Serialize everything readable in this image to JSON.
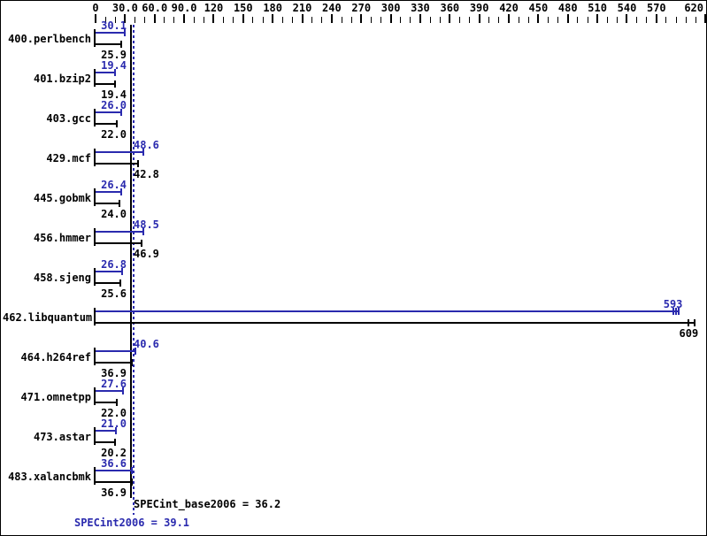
{
  "chart_data": {
    "type": "bar",
    "orientation": "horizontal",
    "series": [
      {
        "name": "peak",
        "color": "#2a2aae"
      },
      {
        "name": "base",
        "color": "#000000"
      }
    ],
    "benchmarks": [
      {
        "name": "400.perlbench",
        "peak": 30.1,
        "peak_label": "30.1",
        "base": 25.9,
        "base_label": "25.9"
      },
      {
        "name": "401.bzip2",
        "peak": 19.4,
        "peak_label": "19.4",
        "base": 19.4,
        "base_label": "19.4"
      },
      {
        "name": "403.gcc",
        "peak": 26.0,
        "peak_label": "26.0",
        "base": 22.0,
        "base_label": "22.0"
      },
      {
        "name": "429.mcf",
        "peak": 48.6,
        "peak_label": "48.6",
        "base": 42.8,
        "base_label": "42.8"
      },
      {
        "name": "445.gobmk",
        "peak": 26.4,
        "peak_label": "26.4",
        "base": 24.0,
        "base_label": "24.0"
      },
      {
        "name": "456.hmmer",
        "peak": 48.5,
        "peak_label": "48.5",
        "base": 46.9,
        "base_label": "46.9"
      },
      {
        "name": "458.sjeng",
        "peak": 26.8,
        "peak_label": "26.8",
        "base": 25.6,
        "base_label": "25.6"
      },
      {
        "name": "462.libquantum",
        "peak": 593,
        "peak_label": "593",
        "base": 609,
        "base_label": "609",
        "peak_marks": 3,
        "base_marks": 2
      },
      {
        "name": "464.h264ref",
        "peak": 40.6,
        "peak_label": "40.6",
        "base": 36.9,
        "base_label": "36.9"
      },
      {
        "name": "471.omnetpp",
        "peak": 27.6,
        "peak_label": "27.6",
        "base": 22.0,
        "base_label": "22.0"
      },
      {
        "name": "473.astar",
        "peak": 21.0,
        "peak_label": "21.0",
        "base": 20.2,
        "base_label": "20.2"
      },
      {
        "name": "483.xalancbmk",
        "peak": 36.6,
        "peak_label": "36.6",
        "base": 36.9,
        "base_label": "36.9"
      }
    ],
    "axis": {
      "min": 0,
      "max": 620,
      "major_step": 30,
      "minor_step": 10,
      "tick_labels": [
        {
          "value": 0,
          "label": "0"
        },
        {
          "value": 30,
          "label": "30.0"
        },
        {
          "value": 60,
          "label": "60.0"
        },
        {
          "value": 90,
          "label": "90.0"
        },
        {
          "value": 120,
          "label": "120"
        },
        {
          "value": 150,
          "label": "150"
        },
        {
          "value": 180,
          "label": "180"
        },
        {
          "value": 210,
          "label": "210"
        },
        {
          "value": 240,
          "label": "240"
        },
        {
          "value": 270,
          "label": "270"
        },
        {
          "value": 300,
          "label": "300"
        },
        {
          "value": 330,
          "label": "330"
        },
        {
          "value": 360,
          "label": "360"
        },
        {
          "value": 390,
          "label": "390"
        },
        {
          "value": 420,
          "label": "420"
        },
        {
          "value": 450,
          "label": "450"
        },
        {
          "value": 480,
          "label": "480"
        },
        {
          "value": 510,
          "label": "510"
        },
        {
          "value": 540,
          "label": "540"
        },
        {
          "value": 570,
          "label": "570"
        },
        {
          "value": 620,
          "label": "620"
        }
      ]
    },
    "summary": {
      "base_text": "SPECint_base2006 = 36.2",
      "base_value": 36.2,
      "peak_text": "SPECint2006 = 39.1",
      "peak_value": 39.1
    },
    "colors": {
      "peak": "#2a2aae",
      "base": "#000000",
      "background": "#ffffff",
      "border": "#000000"
    }
  }
}
